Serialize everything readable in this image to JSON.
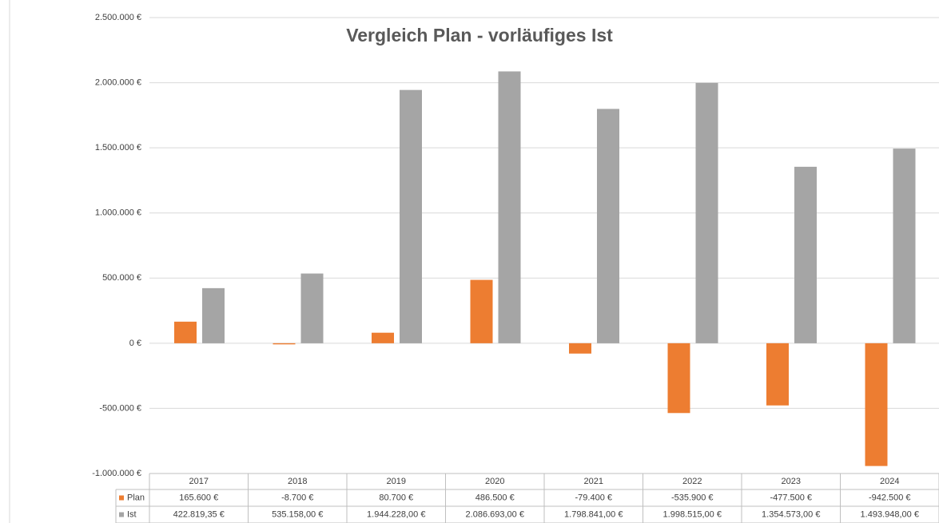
{
  "chart_data": {
    "type": "bar",
    "title": "Vergleich Plan - vorläufiges Ist",
    "categories": [
      "2017",
      "2018",
      "2019",
      "2020",
      "2021",
      "2022",
      "2023",
      "2024"
    ],
    "series": [
      {
        "name": "Plan",
        "color": "#ed7d31",
        "values": [
          165600,
          -8700,
          80700,
          486500,
          -79400,
          -535900,
          -477500,
          -942500
        ],
        "value_labels": [
          "165.600 €",
          "-8.700 €",
          "80.700 €",
          "486.500 €",
          "-79.400 €",
          "-535.900 €",
          "-477.500 €",
          "-942.500 €"
        ]
      },
      {
        "name": "Ist",
        "color": "#a5a5a5",
        "values": [
          422819.35,
          535158,
          1944228,
          2086693,
          1798841,
          1998515,
          1354573,
          1493948
        ],
        "value_labels": [
          "422.819,35 €",
          "535.158,00 €",
          "1.944.228,00 €",
          "2.086.693,00 €",
          "1.798.841,00 €",
          "1.998.515,00 €",
          "1.354.573,00 €",
          "1.493.948,00 €"
        ]
      }
    ],
    "ylim": [
      -1000000,
      2500000
    ],
    "yticks": [
      {
        "value": -1000000,
        "label": "-1.000.000 €"
      },
      {
        "value": -500000,
        "label": "-500.000 €"
      },
      {
        "value": 0,
        "label": "0 €"
      },
      {
        "value": 500000,
        "label": "500.000 €"
      },
      {
        "value": 1000000,
        "label": "1.000.000 €"
      },
      {
        "value": 1500000,
        "label": "1.500.000 €"
      },
      {
        "value": 2000000,
        "label": "2.000.000 €"
      },
      {
        "value": 2500000,
        "label": "2.500.000 €"
      }
    ],
    "grid": true
  }
}
